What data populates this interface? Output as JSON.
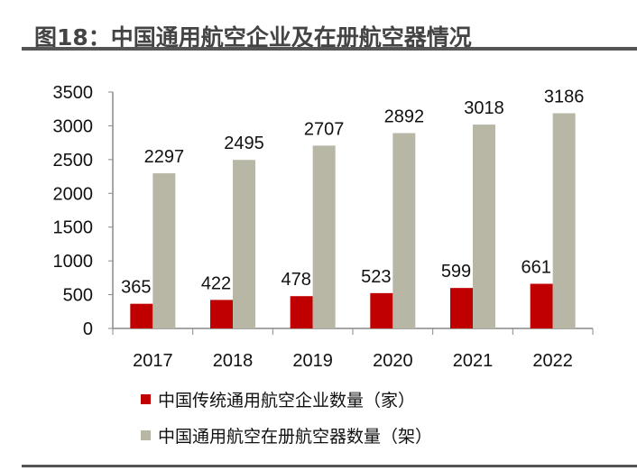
{
  "title": "图18：中国通用航空企业及在册航空器情况",
  "chart_data": {
    "type": "bar",
    "categories": [
      "2017",
      "2018",
      "2019",
      "2020",
      "2021",
      "2022"
    ],
    "series": [
      {
        "name": "中国传统通用航空企业数量（家）",
        "values": [
          365,
          422,
          478,
          523,
          599,
          661
        ],
        "color": "#C00000"
      },
      {
        "name": "中国通用航空在册航空器数量（架）",
        "values": [
          2297,
          2495,
          2707,
          2892,
          3018,
          3186
        ],
        "color": "#B8B7A5"
      }
    ],
    "ylim": [
      0,
      3500
    ],
    "yticks": [
      0,
      500,
      1000,
      1500,
      2000,
      2500,
      3000,
      3500
    ],
    "grid": false,
    "legend": "bottom",
    "data_labels": true
  }
}
